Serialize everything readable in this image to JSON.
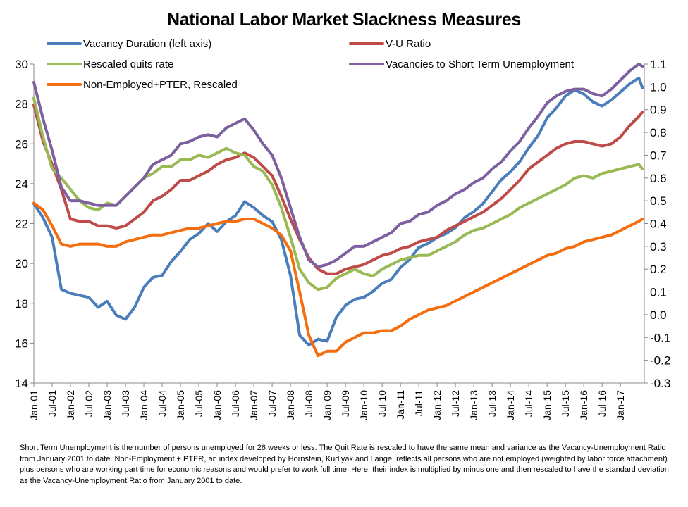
{
  "chart_data": {
    "type": "line",
    "title": "National Labor Market Slackness Measures",
    "xlabel": "",
    "ylabel": "",
    "ylim": [
      14,
      30
    ],
    "y2lim": [
      -0.3,
      1.1
    ],
    "left_ticks": [
      "14",
      "16",
      "18",
      "20",
      "22",
      "24",
      "26",
      "28",
      "30"
    ],
    "right_ticks": [
      "-0.3",
      "-0.2",
      "-0.1",
      "0.0",
      "0.1",
      "0.2",
      "0.3",
      "0.4",
      "0.5",
      "0.6",
      "0.7",
      "0.8",
      "0.9",
      "1.0",
      "1.1"
    ],
    "categories": [
      "Jan-01",
      "Jul-01",
      "Jan-02",
      "Jul-02",
      "Jan-03",
      "Jul-03",
      "Jan-04",
      "Jul-04",
      "Jan-05",
      "Jul-05",
      "Jan-06",
      "Jul-06",
      "Jan-07",
      "Jul-07",
      "Jan-08",
      "Jul-08",
      "Jan-09",
      "Jul-09",
      "Jan-10",
      "Jul-10",
      "Jan-11",
      "Jul-11",
      "Jan-12",
      "Jul-12",
      "Jan-13",
      "Jul-13",
      "Jan-14",
      "Jul-14",
      "Jan-15",
      "Jul-15",
      "Jan-16",
      "Jul-16",
      "Jan-17"
    ],
    "x_range": [
      0,
      33.3
    ],
    "grid": false,
    "legend_position": "top",
    "series": [
      {
        "name": "Vacancy Duration (left axis)",
        "axis": "left",
        "color": "#4a7ebb",
        "x": [
          0,
          0.5,
          1,
          1.5,
          2,
          2.5,
          3,
          3.5,
          4,
          4.5,
          5,
          5.5,
          6,
          6.5,
          7,
          7.5,
          8,
          8.5,
          9,
          9.5,
          10,
          10.5,
          11,
          11.5,
          12,
          12.5,
          13,
          13.5,
          14,
          14.5,
          15,
          15.5,
          16,
          16.5,
          17,
          17.5,
          18,
          18.5,
          19,
          19.5,
          20,
          20.5,
          21,
          21.5,
          22,
          22.5,
          23,
          23.5,
          24,
          24.5,
          25,
          25.5,
          26,
          26.5,
          27,
          27.5,
          28,
          28.5,
          29,
          29.5,
          30,
          30.5,
          31,
          31.5,
          32,
          32.5,
          33,
          33.2
        ],
        "y": [
          23.0,
          22.3,
          21.3,
          18.7,
          18.5,
          18.4,
          18.3,
          17.8,
          18.1,
          17.4,
          17.2,
          17.8,
          18.8,
          19.3,
          19.4,
          20.1,
          20.6,
          21.2,
          21.5,
          22.0,
          21.6,
          22.1,
          22.4,
          23.1,
          22.8,
          22.4,
          22.1,
          21.2,
          19.4,
          16.4,
          15.9,
          16.2,
          16.1,
          17.3,
          17.9,
          18.2,
          18.3,
          18.6,
          19.0,
          19.2,
          19.8,
          20.2,
          20.8,
          21.0,
          21.3,
          21.5,
          21.8,
          22.3,
          22.6,
          23.0,
          23.6,
          24.2,
          24.6,
          25.1,
          25.8,
          26.4,
          27.3,
          27.8,
          28.4,
          28.7,
          28.5,
          28.1,
          27.9,
          28.2,
          28.6,
          29.0,
          29.3,
          28.8
        ]
      },
      {
        "name": "V-U Ratio",
        "axis": "right",
        "color": "#be4b48",
        "x": [
          0,
          0.5,
          1,
          1.5,
          2,
          2.5,
          3,
          3.5,
          4,
          4.5,
          5,
          5.5,
          6,
          6.5,
          7,
          7.5,
          8,
          8.5,
          9,
          9.5,
          10,
          10.5,
          11,
          11.5,
          12,
          12.5,
          13,
          13.5,
          14,
          14.5,
          15,
          15.5,
          16,
          16.5,
          17,
          17.5,
          18,
          18.5,
          19,
          19.5,
          20,
          20.5,
          21,
          21.5,
          22,
          22.5,
          23,
          23.5,
          24,
          24.5,
          25,
          25.5,
          26,
          26.5,
          27,
          27.5,
          28,
          28.5,
          29,
          29.5,
          30,
          30.5,
          31,
          31.5,
          32,
          32.5,
          33,
          33.2
        ],
        "y": [
          0.92,
          0.76,
          0.66,
          0.55,
          0.42,
          0.41,
          0.41,
          0.39,
          0.39,
          0.38,
          0.39,
          0.42,
          0.45,
          0.5,
          0.52,
          0.55,
          0.59,
          0.59,
          0.61,
          0.63,
          0.66,
          0.68,
          0.69,
          0.71,
          0.69,
          0.65,
          0.61,
          0.52,
          0.42,
          0.33,
          0.25,
          0.2,
          0.18,
          0.18,
          0.2,
          0.21,
          0.22,
          0.24,
          0.26,
          0.27,
          0.29,
          0.3,
          0.32,
          0.33,
          0.34,
          0.37,
          0.39,
          0.41,
          0.43,
          0.45,
          0.48,
          0.51,
          0.55,
          0.59,
          0.64,
          0.67,
          0.7,
          0.73,
          0.75,
          0.76,
          0.76,
          0.75,
          0.74,
          0.75,
          0.78,
          0.83,
          0.87,
          0.89
        ]
      },
      {
        "name": "Rescaled quits rate",
        "axis": "right",
        "color": "#98b954",
        "x": [
          0,
          0.5,
          1,
          1.5,
          2,
          2.5,
          3,
          3.5,
          4,
          4.5,
          5,
          5.5,
          6,
          6.5,
          7,
          7.5,
          8,
          8.5,
          9,
          9.5,
          10,
          10.5,
          11,
          11.5,
          12,
          12.5,
          13,
          13.5,
          14,
          14.5,
          15,
          15.5,
          16,
          16.5,
          17,
          17.5,
          18,
          18.5,
          19,
          19.5,
          20,
          20.5,
          21,
          21.5,
          22,
          22.5,
          23,
          23.5,
          24,
          24.5,
          25,
          25.5,
          26,
          26.5,
          27,
          27.5,
          28,
          28.5,
          29,
          29.5,
          30,
          30.5,
          31,
          31.5,
          32,
          32.5,
          33,
          33.2
        ],
        "y": [
          0.95,
          0.78,
          0.64,
          0.6,
          0.55,
          0.5,
          0.47,
          0.46,
          0.49,
          0.48,
          0.52,
          0.56,
          0.6,
          0.62,
          0.65,
          0.65,
          0.68,
          0.68,
          0.7,
          0.69,
          0.71,
          0.73,
          0.71,
          0.7,
          0.65,
          0.63,
          0.57,
          0.47,
          0.34,
          0.2,
          0.14,
          0.11,
          0.12,
          0.16,
          0.18,
          0.2,
          0.18,
          0.17,
          0.2,
          0.22,
          0.24,
          0.25,
          0.26,
          0.26,
          0.28,
          0.3,
          0.32,
          0.35,
          0.37,
          0.38,
          0.4,
          0.42,
          0.44,
          0.47,
          0.49,
          0.51,
          0.53,
          0.55,
          0.57,
          0.6,
          0.61,
          0.6,
          0.62,
          0.63,
          0.64,
          0.65,
          0.66,
          0.64
        ]
      },
      {
        "name": "Vacancies to Short Term Unemployment",
        "axis": "right",
        "color": "#7d60a0",
        "x": [
          0,
          0.5,
          1,
          1.5,
          2,
          2.5,
          3,
          3.5,
          4,
          4.5,
          5,
          5.5,
          6,
          6.5,
          7,
          7.5,
          8,
          8.5,
          9,
          9.5,
          10,
          10.5,
          11,
          11.5,
          12,
          12.5,
          13,
          13.5,
          14,
          14.5,
          15,
          15.5,
          16,
          16.5,
          17,
          17.5,
          18,
          18.5,
          19,
          19.5,
          20,
          20.5,
          21,
          21.5,
          22,
          22.5,
          23,
          23.5,
          24,
          24.5,
          25,
          25.5,
          26,
          26.5,
          27,
          27.5,
          28,
          28.5,
          29,
          29.5,
          30,
          30.5,
          31,
          31.5,
          32,
          32.5,
          33,
          33.2
        ],
        "y": [
          1.02,
          0.86,
          0.72,
          0.56,
          0.5,
          0.5,
          0.49,
          0.48,
          0.48,
          0.48,
          0.52,
          0.56,
          0.6,
          0.66,
          0.68,
          0.7,
          0.75,
          0.76,
          0.78,
          0.79,
          0.78,
          0.82,
          0.84,
          0.86,
          0.81,
          0.75,
          0.7,
          0.6,
          0.47,
          0.34,
          0.24,
          0.21,
          0.22,
          0.24,
          0.27,
          0.3,
          0.3,
          0.32,
          0.34,
          0.36,
          0.4,
          0.41,
          0.44,
          0.45,
          0.48,
          0.5,
          0.53,
          0.55,
          0.58,
          0.6,
          0.64,
          0.67,
          0.72,
          0.76,
          0.82,
          0.87,
          0.93,
          0.96,
          0.98,
          0.99,
          0.99,
          0.97,
          0.96,
          0.99,
          1.03,
          1.07,
          1.1,
          1.09
        ]
      },
      {
        "name": "Non-Employed+PTER,  Rescaled",
        "axis": "right",
        "color": "#f46d0f",
        "x": [
          0,
          0.5,
          1,
          1.5,
          2,
          2.5,
          3,
          3.5,
          4,
          4.5,
          5,
          5.5,
          6,
          6.5,
          7,
          7.5,
          8,
          8.5,
          9,
          9.5,
          10,
          10.5,
          11,
          11.5,
          12,
          12.5,
          13,
          13.5,
          14,
          14.5,
          15,
          15.5,
          16,
          16.5,
          17,
          17.5,
          18,
          18.5,
          19,
          19.5,
          20,
          20.5,
          21,
          21.5,
          22,
          22.5,
          23,
          23.5,
          24,
          24.5,
          25,
          25.5,
          26,
          26.5,
          27,
          27.5,
          28,
          28.5,
          29,
          29.5,
          30,
          30.5,
          31,
          31.5,
          32,
          32.5,
          33,
          33.2
        ],
        "y": [
          0.49,
          0.46,
          0.39,
          0.31,
          0.3,
          0.31,
          0.31,
          0.31,
          0.3,
          0.3,
          0.32,
          0.33,
          0.34,
          0.35,
          0.35,
          0.36,
          0.37,
          0.38,
          0.38,
          0.39,
          0.4,
          0.41,
          0.41,
          0.42,
          0.42,
          0.4,
          0.38,
          0.35,
          0.28,
          0.1,
          -0.09,
          -0.18,
          -0.16,
          -0.16,
          -0.12,
          -0.1,
          -0.08,
          -0.08,
          -0.07,
          -0.07,
          -0.05,
          -0.02,
          0.0,
          0.02,
          0.03,
          0.04,
          0.06,
          0.08,
          0.1,
          0.12,
          0.14,
          0.16,
          0.18,
          0.2,
          0.22,
          0.24,
          0.26,
          0.27,
          0.29,
          0.3,
          0.32,
          0.33,
          0.34,
          0.35,
          0.37,
          0.39,
          0.41,
          0.42
        ]
      }
    ]
  },
  "footnote": "Short Term Unemployment is the number of persons unemployed for 26 weeks or less. The Quit Rate is rescaled to have the same mean and variance as the Vacancy-Unemployment Ratio from January 2001 to date. Non-Employment + PTER, an index developed by Hornstein,  Kudlyak and Lange, reflects  all persons who are not employed (weighted by labor force attachment) plus persons who are working part time for economic reasons and would prefer to work full time. Here, their index is multiplied by minus one and then rescaled to have the standard deviation as the Vacancy-Unemployment Ratio from January 2001 to date."
}
